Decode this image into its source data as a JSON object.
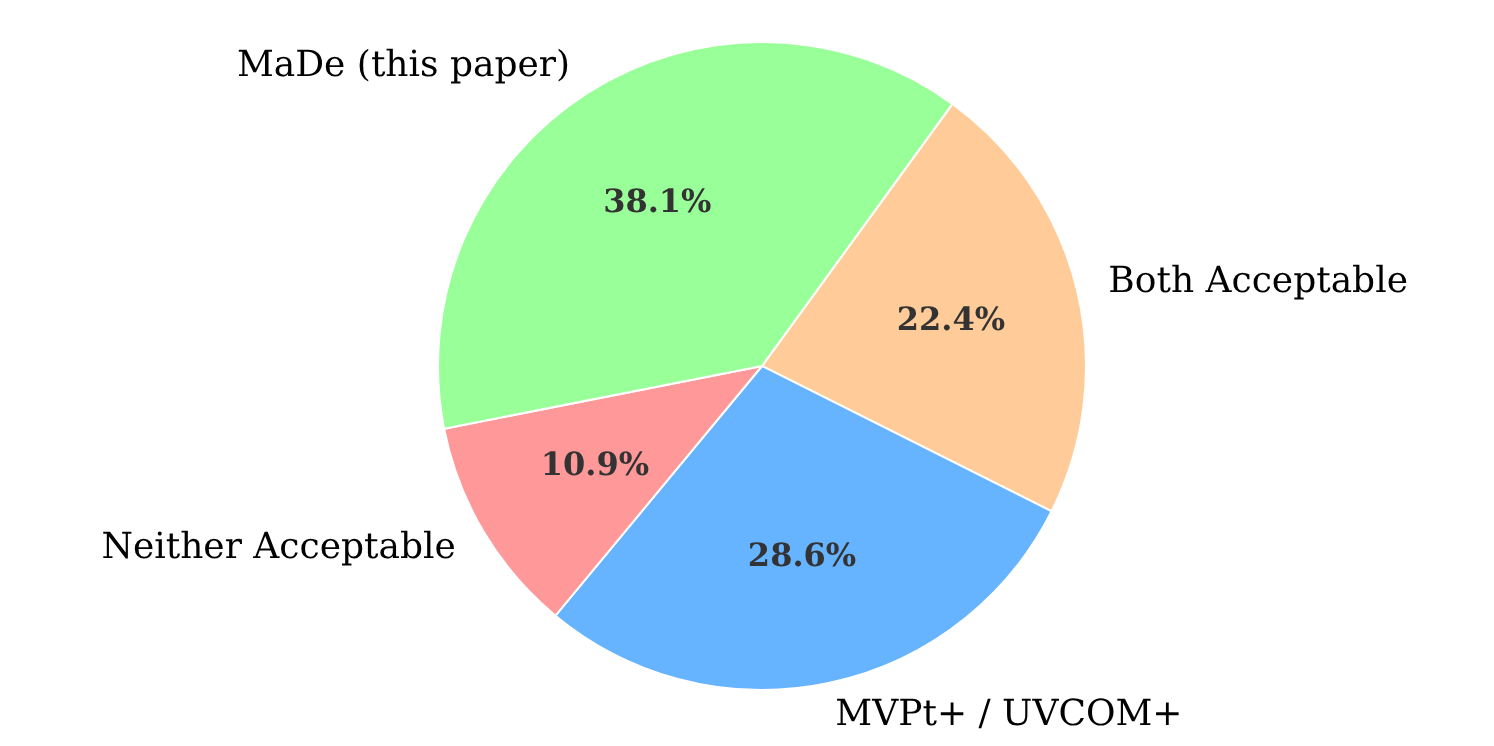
{
  "chart_data": {
    "type": "pie",
    "categories": [
      "Both Acceptable",
      "MVPt+ / UVCOM+",
      "Neither Acceptable",
      "MaDe (this paper)"
    ],
    "values": [
      22.4,
      28.6,
      10.9,
      38.1
    ],
    "colors": [
      "#ffcc99",
      "#66b3ff",
      "#ff9999",
      "#99ff99"
    ],
    "value_labels": [
      "22.4%",
      "28.6%",
      "10.9%",
      "38.1%"
    ]
  }
}
